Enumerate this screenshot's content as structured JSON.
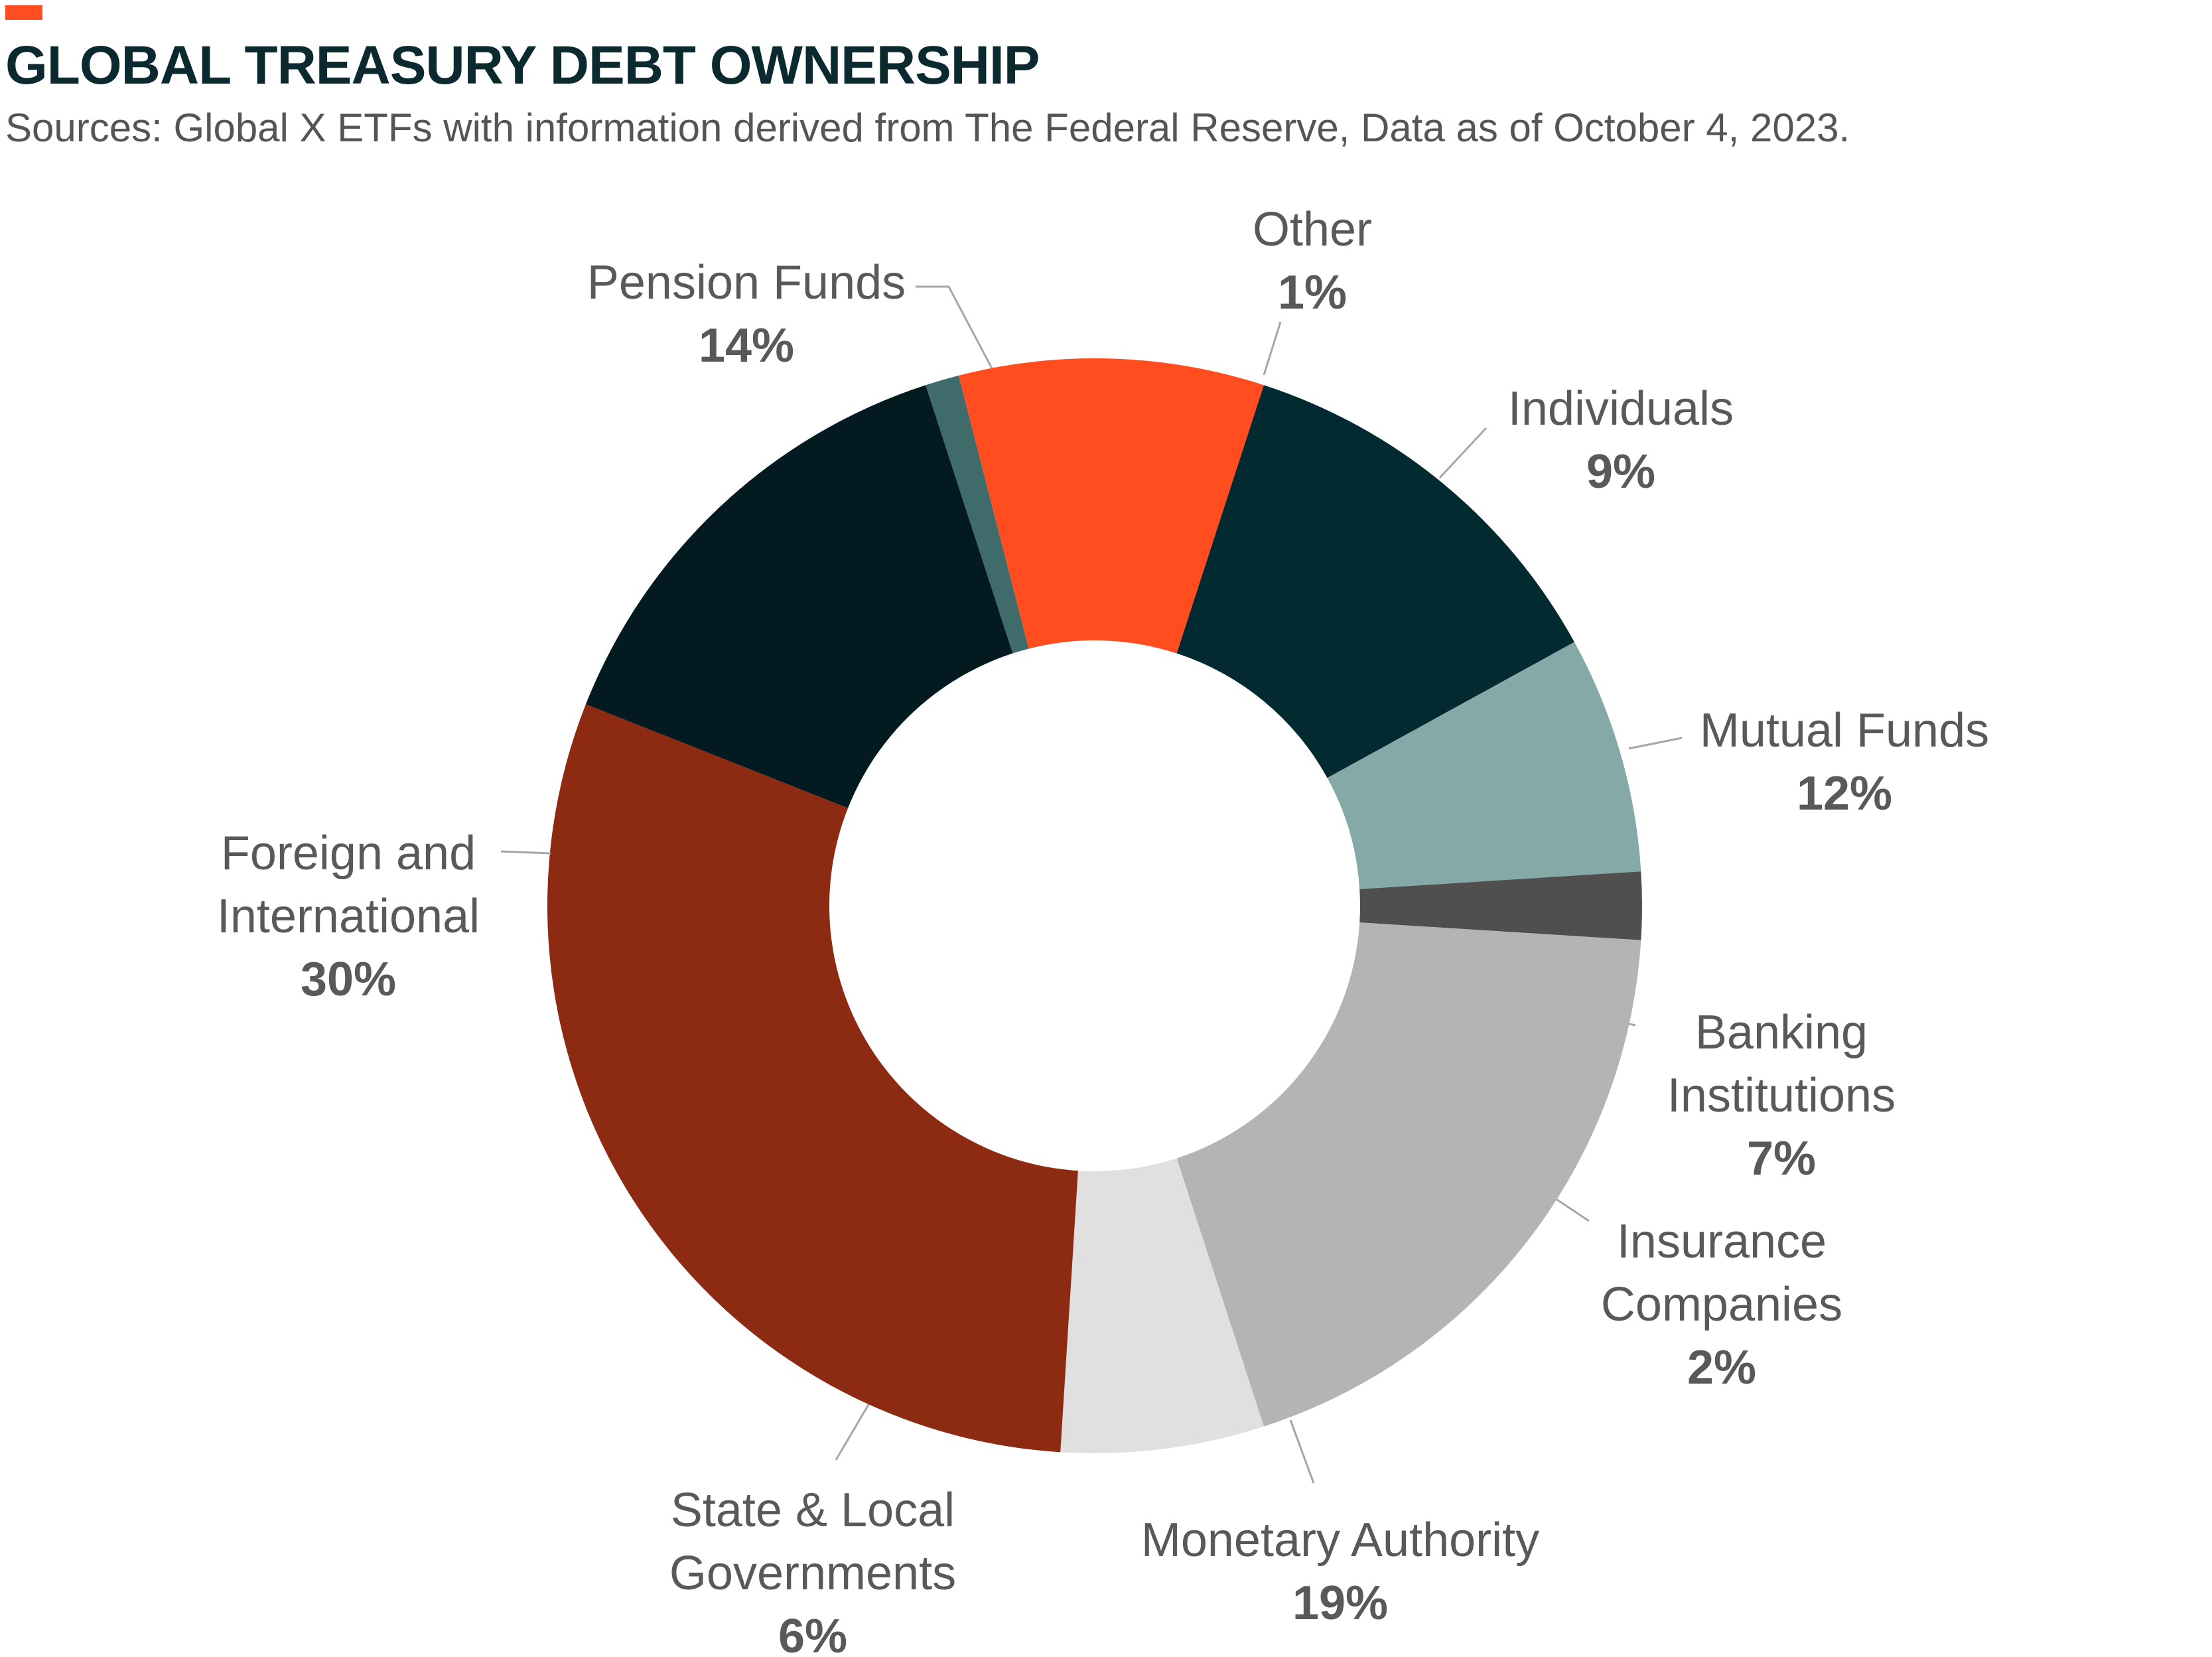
{
  "header": {
    "title": "GLOBAL TREASURY DEBT OWNERSHIP",
    "subtitle": "Sources: Global X ETFs with information derived from The Federal Reserve, Data as of October 4, 2023.",
    "accent_color": "#ff4d1f"
  },
  "chart_data": {
    "type": "pie",
    "variant": "donut",
    "slices": [
      {
        "label": [
          "Other"
        ],
        "value": 1,
        "display": "1%",
        "color": "#3f6b6b"
      },
      {
        "label": [
          "Individuals"
        ],
        "value": 9,
        "display": "9%",
        "color": "#ff4d1f"
      },
      {
        "label": [
          "Mutual Funds"
        ],
        "value": 12,
        "display": "12%",
        "color": "#032a31"
      },
      {
        "label": [
          "Banking",
          "Institutions"
        ],
        "value": 7,
        "display": "7%",
        "color": "#85a9a6"
      },
      {
        "label": [
          "Insurance",
          "Companies"
        ],
        "value": 2,
        "display": "2%",
        "color": "#4f4f4f"
      },
      {
        "label": [
          "Monetary Authority"
        ],
        "value": 19,
        "display": "19%",
        "color": "#b4b4b2"
      },
      {
        "label": [
          "State & Local",
          "Governments"
        ],
        "value": 6,
        "display": "6%",
        "color": "#e0e0e0"
      },
      {
        "label": [
          "Foreign and",
          "International"
        ],
        "value": 30,
        "display": "30%",
        "color": "#8c2b12"
      },
      {
        "label": [
          "Pension Funds"
        ],
        "value": 14,
        "display": "14%",
        "color": "#031b20"
      }
    ]
  }
}
